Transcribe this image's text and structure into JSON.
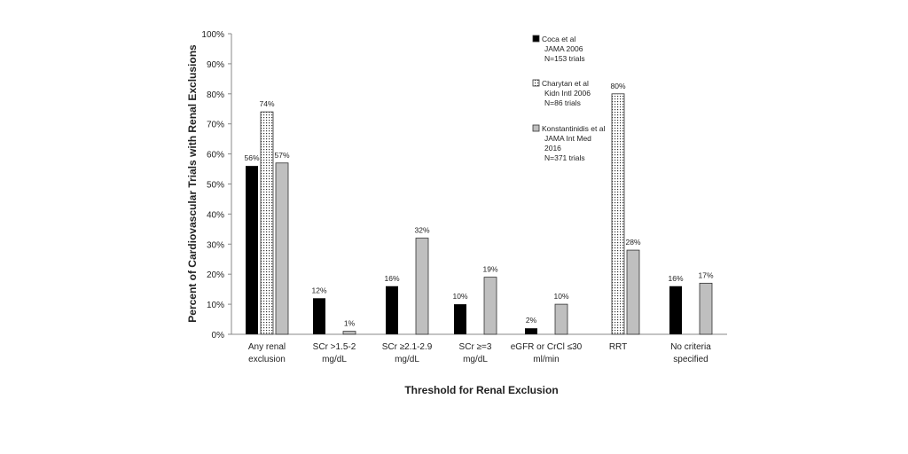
{
  "chart_data": {
    "type": "bar",
    "title": "",
    "xlabel": "Threshold for Renal Exclusion",
    "ylabel": "Percent of Cardiovascular Trials with Renal Exclusions",
    "ylim": [
      0,
      100
    ],
    "y_ticks": [
      "0%",
      "10%",
      "20%",
      "30%",
      "40%",
      "50%",
      "60%",
      "70%",
      "80%",
      "90%",
      "100%"
    ],
    "grid": false,
    "legend_position": "top-right",
    "categories": [
      [
        "Any renal",
        "exclusion"
      ],
      [
        "SCr >1.5-2",
        "mg/dL"
      ],
      [
        "SCr ≥2.1-2.9",
        "mg/dL"
      ],
      [
        "SCr ≥=3",
        "mg/dL"
      ],
      [
        "eGFR or CrCl ≤30",
        "ml/min"
      ],
      [
        "RRT"
      ],
      [
        "No criteria",
        "specified"
      ]
    ],
    "series": [
      {
        "name": [
          "Coca et al",
          "JAMA 2006",
          "N=153 trials"
        ],
        "style": "solid",
        "color": "#000000",
        "values": [
          56,
          12,
          16,
          10,
          2,
          null,
          16
        ],
        "labels": [
          "56%",
          "12%",
          "16%",
          "10%",
          "2%",
          null,
          "16%"
        ]
      },
      {
        "name": [
          "Charytan et al",
          "Kidn Intl 2006",
          "N=86 trials"
        ],
        "style": "dotted",
        "color": "#ffffff",
        "values": [
          74,
          null,
          null,
          null,
          null,
          80,
          null
        ],
        "labels": [
          "74%",
          null,
          null,
          null,
          null,
          "80%",
          null
        ]
      },
      {
        "name": [
          "Konstantinidis et al",
          "JAMA Int Med",
          "2016",
          "N=371 trials"
        ],
        "style": "solid",
        "color": "#bfbfbf",
        "values": [
          57,
          1,
          32,
          19,
          10,
          28,
          17
        ],
        "labels": [
          "57%",
          "1%",
          "32%",
          "19%",
          "10%",
          "28%",
          "17%"
        ]
      }
    ]
  }
}
